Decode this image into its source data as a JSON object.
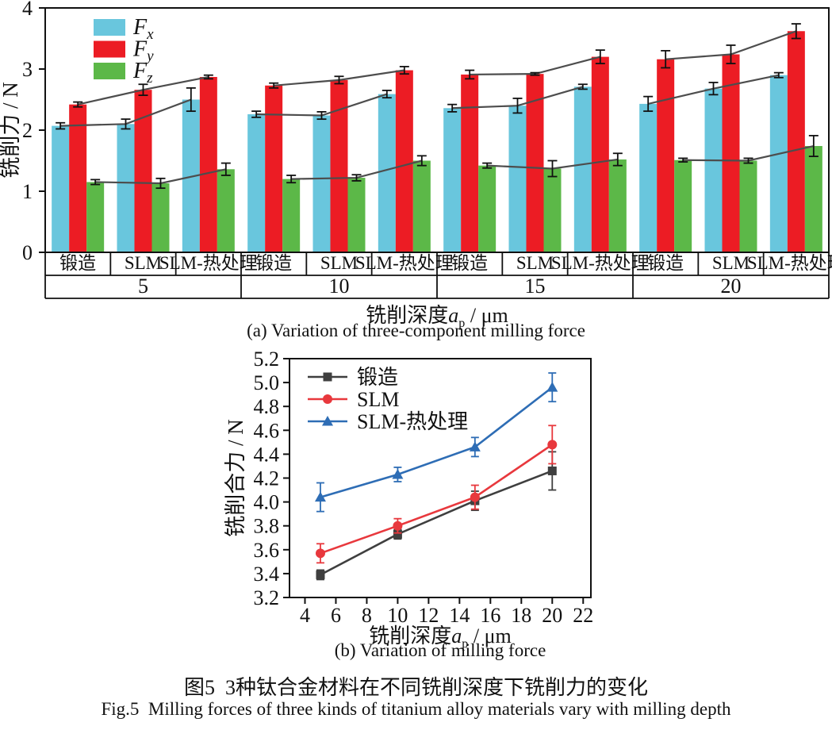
{
  "figure": {
    "caption_zh": "图5  3种钛合金材料在不同铣削深度下铣削力的变化",
    "caption_en": "Fig.5  Milling forces of three kinds of titanium alloy materials vary with milling depth"
  },
  "chart_a": {
    "caption": "(a) Variation of three-component milling force",
    "ylabel": "铣削力 / N",
    "xlabel_prefix": "铣削深度",
    "xlabel_var": "a",
    "xlabel_sub": "p",
    "xlabel_unit": " / μm"
  },
  "chart_b": {
    "caption": "(b) Variation of milling force",
    "ylabel": "铣削合力 / N",
    "xlabel_prefix": "铣削深度",
    "xlabel_var": "a",
    "xlabel_sub": "p",
    "xlabel_unit": " / μm"
  },
  "chart_data": [
    {
      "id": "a",
      "type": "bar",
      "title": "",
      "ylabel": "铣削力 / N",
      "xlabel": "铣削深度 ap / μm",
      "ylim": [
        0,
        4
      ],
      "yticks": [
        0,
        1,
        2,
        3,
        4
      ],
      "grid": false,
      "legend_position": "top-left",
      "groups": [
        "5",
        "10",
        "15",
        "20"
      ],
      "materials": [
        "锻造",
        "SLM",
        "SLM-热处理"
      ],
      "series": [
        {
          "name": "Fx",
          "label_main": "F",
          "label_sub": "x",
          "color": "#69c6dd",
          "values": [
            [
              2.07,
              2.1,
              2.5
            ],
            [
              2.26,
              2.24,
              2.59
            ],
            [
              2.36,
              2.4,
              2.71
            ],
            [
              2.43,
              2.68,
              2.9
            ]
          ],
          "errors": [
            [
              0.05,
              0.08,
              0.19
            ],
            [
              0.05,
              0.06,
              0.06
            ],
            [
              0.06,
              0.12,
              0.04
            ],
            [
              0.12,
              0.1,
              0.04
            ]
          ]
        },
        {
          "name": "Fy",
          "label_main": "F",
          "label_sub": "y",
          "color": "#ec1c24",
          "values": [
            [
              2.42,
              2.66,
              2.87
            ],
            [
              2.73,
              2.82,
              2.98
            ],
            [
              2.91,
              2.92,
              3.2
            ],
            [
              3.16,
              3.24,
              3.62
            ]
          ],
          "errors": [
            [
              0.04,
              0.09,
              0.03
            ],
            [
              0.04,
              0.06,
              0.06
            ],
            [
              0.07,
              0.02,
              0.11
            ],
            [
              0.14,
              0.15,
              0.12
            ]
          ]
        },
        {
          "name": "Fz",
          "label_main": "F",
          "label_sub": "z",
          "color": "#5cb848",
          "values": [
            [
              1.15,
              1.13,
              1.36
            ],
            [
              1.2,
              1.22,
              1.5
            ],
            [
              1.42,
              1.37,
              1.52
            ],
            [
              1.51,
              1.5,
              1.74
            ]
          ],
          "errors": [
            [
              0.04,
              0.08,
              0.1
            ],
            [
              0.06,
              0.05,
              0.08
            ],
            [
              0.04,
              0.13,
              0.1
            ],
            [
              0.03,
              0.04,
              0.17
            ]
          ]
        }
      ],
      "connector_line_color": "#4d4d4d"
    },
    {
      "id": "b",
      "type": "line",
      "title": "",
      "ylabel": "铣削合力 / N",
      "xlabel": "铣削深度 ap / μm",
      "ylim": [
        3.2,
        5.2
      ],
      "ytick_step": 0.2,
      "xlim": [
        3,
        22.5
      ],
      "xticks": [
        4,
        6,
        8,
        10,
        12,
        14,
        16,
        18,
        20,
        22
      ],
      "grid": false,
      "legend_position": "top-left",
      "x": [
        5,
        10,
        15,
        20
      ],
      "series": [
        {
          "name": "锻造",
          "color": "#3f3f3f",
          "marker": "square",
          "values": [
            3.39,
            3.73,
            4.01,
            4.26
          ],
          "errors": [
            0.04,
            0.04,
            0.08,
            0.16
          ]
        },
        {
          "name": "SLM",
          "color": "#e8383d",
          "marker": "circle",
          "values": [
            3.57,
            3.8,
            4.04,
            4.48
          ],
          "errors": [
            0.08,
            0.06,
            0.1,
            0.16
          ]
        },
        {
          "name": "SLM-热处理",
          "color": "#2e6db5",
          "marker": "triangle",
          "values": [
            4.04,
            4.23,
            4.46,
            4.96
          ],
          "errors": [
            0.12,
            0.06,
            0.08,
            0.12
          ]
        }
      ]
    }
  ]
}
